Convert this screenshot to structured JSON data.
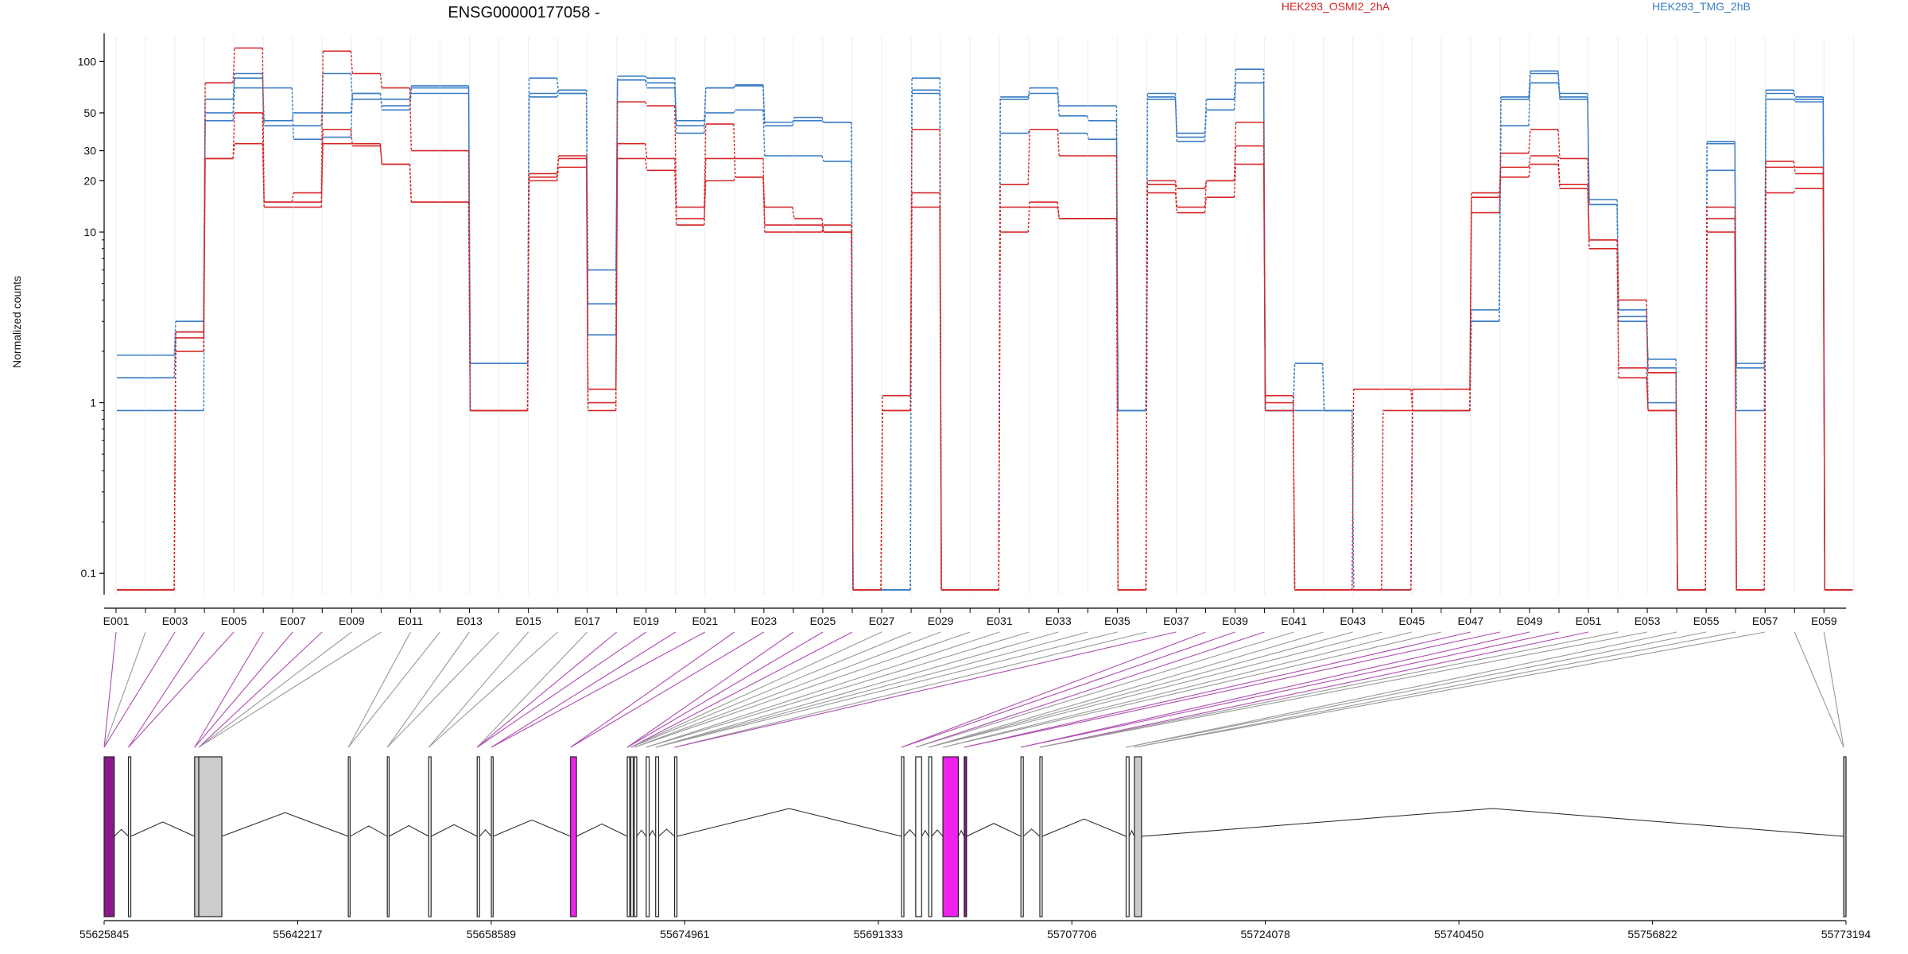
{
  "title": "ENSG00000177058 -",
  "legend": [
    {
      "name": "HEK293_OSMI2_2hA",
      "color": "#d62728"
    },
    {
      "name": "HEK293_TMG_2hB",
      "color": "#3a7dc4"
    }
  ],
  "ylabel": "Normalized counts",
  "colors": {
    "red": "#d62728",
    "blue": "#3a7dc4",
    "magenta": "#ee22ee",
    "purple_dark": "#8a1a8a",
    "gray_box": "#cccccc",
    "link_gray": "#999999",
    "link_purple": "#b04bb0"
  },
  "chart_data": {
    "type": "line",
    "scale": "log",
    "yticks": [
      0.1,
      1,
      10,
      20,
      30,
      50,
      100
    ],
    "yticklabels": [
      "0.1",
      "1",
      "10",
      "20",
      "30",
      "50",
      "100"
    ],
    "exon_ids": [
      "E001",
      "E002",
      "E003",
      "E004",
      "E005",
      "E006",
      "E007",
      "E008",
      "E009",
      "E010",
      "E011",
      "E012",
      "E013",
      "E014",
      "E015",
      "E016",
      "E017",
      "E018",
      "E019",
      "E020",
      "E021",
      "E022",
      "E023",
      "E024",
      "E025",
      "E026",
      "E027",
      "E028",
      "E029",
      "E030",
      "E031",
      "E032",
      "E033",
      "E034",
      "E035",
      "E036",
      "E037",
      "E038",
      "E039",
      "E040",
      "E041",
      "E042",
      "E043",
      "E044",
      "E045",
      "E046",
      "E047",
      "E048",
      "E049",
      "E050",
      "E051",
      "E052",
      "E053",
      "E054",
      "E055",
      "E056",
      "E057",
      "E058",
      "E059"
    ],
    "x_labels": [
      "E001",
      "E003",
      "E005",
      "E007",
      "E009",
      "E011",
      "E013",
      "E015",
      "E017",
      "E019",
      "E021",
      "E023",
      "E025",
      "E027",
      "E029",
      "E031",
      "E033",
      "E035",
      "E037",
      "E039",
      "E041",
      "E043",
      "E045",
      "E047",
      "E049",
      "E051",
      "E053",
      "E055",
      "E057",
      "E059"
    ],
    "series": [
      {
        "name": "HEK293_TMG_2hB",
        "color": "blue",
        "values": [
          1.9,
          1.9,
          3.0,
          45,
          70,
          70,
          35,
          36,
          65,
          55,
          65,
          65,
          0.9,
          0.9,
          65,
          68,
          3.8,
          78,
          75,
          42,
          50,
          52,
          28,
          28,
          26,
          0.08,
          0.08,
          68,
          0.08,
          0.08,
          38,
          40,
          38,
          35,
          0.9,
          60,
          34,
          52,
          75,
          0.9,
          1.7,
          0.9,
          0.08,
          0.08,
          0.9,
          0.9,
          3.0,
          42,
          85,
          60,
          14.5,
          3.0,
          1.8,
          0.08,
          23,
          1.7,
          60,
          58,
          0.08
        ]
      },
      {
        "name": "HEK293_TMG_2hB",
        "color": "blue",
        "values": [
          1.4,
          1.4,
          2.6,
          50,
          80,
          45,
          50,
          50,
          65,
          52,
          70,
          70,
          1.7,
          1.7,
          62,
          65,
          6.0,
          78,
          70,
          38,
          70,
          72,
          42,
          45,
          44,
          0.08,
          0.08,
          65,
          0.08,
          0.08,
          60,
          65,
          48,
          45,
          0.9,
          62,
          38,
          60,
          90,
          0.9,
          0.9,
          0.9,
          0.08,
          0.08,
          0.9,
          0.9,
          3.5,
          60,
          75,
          65,
          15.5,
          3.5,
          1.0,
          0.08,
          34,
          1.6,
          65,
          62,
          0.08
        ]
      },
      {
        "name": "HEK293_TMG_2hB",
        "color": "blue",
        "values": [
          0.9,
          0.9,
          0.9,
          60,
          85,
          42,
          42,
          85,
          60,
          60,
          72,
          72,
          1.7,
          1.7,
          80,
          65,
          2.5,
          82,
          80,
          45,
          70,
          73,
          44,
          47,
          44,
          0.08,
          0.08,
          80,
          0.08,
          0.08,
          62,
          70,
          55,
          55,
          0.9,
          65,
          36,
          60,
          90,
          0.9,
          1.7,
          0.9,
          0.08,
          0.08,
          0.9,
          0.9,
          3.0,
          62,
          88,
          62,
          14.5,
          3.2,
          1.6,
          0.08,
          33,
          0.9,
          68,
          60,
          0.08
        ]
      },
      {
        "name": "HEK293_OSMI2_2hA",
        "color": "red",
        "values": [
          0.08,
          0.08,
          2.6,
          75,
          120,
          15,
          17,
          115,
          85,
          70,
          30,
          30,
          0.9,
          0.9,
          21,
          28,
          0.9,
          58,
          55,
          14,
          43,
          21,
          14,
          12,
          10,
          0.08,
          0.9,
          14,
          0.08,
          0.08,
          19,
          40,
          28,
          28,
          0.08,
          20,
          18,
          20,
          32,
          1.1,
          0.08,
          0.08,
          0.08,
          0.08,
          1.2,
          1.2,
          16,
          29,
          40,
          27,
          9.0,
          4.0,
          1.5,
          0.08,
          14,
          0.08,
          26,
          22,
          0.08
        ]
      },
      {
        "name": "HEK293_OSMI2_2hA",
        "color": "red",
        "values": [
          0.08,
          0.08,
          2.4,
          27,
          50,
          14,
          14,
          40,
          32,
          25,
          15,
          15,
          0.9,
          0.9,
          22,
          27,
          1.2,
          33,
          27,
          11,
          27,
          27,
          10,
          10,
          11,
          0.08,
          1.1,
          40,
          0.08,
          0.08,
          14,
          14,
          12,
          12,
          0.08,
          19,
          14,
          20,
          44,
          1.0,
          0.08,
          0.08,
          1.2,
          1.2,
          0.9,
          0.9,
          13,
          24,
          28,
          19,
          9.0,
          1.6,
          0.9,
          0.08,
          10,
          0.08,
          24,
          24,
          0.08
        ]
      },
      {
        "name": "HEK293_OSMI2_2hA",
        "color": "red",
        "values": [
          0.08,
          0.08,
          2.0,
          27,
          33,
          15,
          15,
          33,
          33,
          25,
          15,
          15,
          0.9,
          0.9,
          20,
          24,
          1.0,
          27,
          23,
          12,
          20,
          21,
          11,
          11,
          10,
          0.08,
          0.9,
          17,
          0.08,
          0.08,
          10,
          15,
          12,
          12,
          0.08,
          17,
          13,
          16,
          25,
          0.9,
          0.08,
          0.08,
          0.08,
          0.9,
          0.9,
          0.9,
          17,
          21,
          25,
          18,
          8.0,
          1.4,
          0.9,
          0.08,
          12,
          0.08,
          17,
          18,
          0.08
        ]
      }
    ]
  },
  "gene_model": {
    "ticks": [
      "55625845",
      "55642217",
      "55658589",
      "55674961",
      "55691333",
      "55707706",
      "55724078",
      "55740450",
      "55756822",
      "55773194"
    ],
    "exons": [
      {
        "start": 55625845,
        "end": 55626700,
        "fill": "magenta_dark"
      },
      {
        "start": 55627900,
        "end": 55628100,
        "fill": "white"
      },
      {
        "start": 55633500,
        "end": 55633850,
        "fill": "gray"
      },
      {
        "start": 55633850,
        "end": 55635800,
        "fill": "gray"
      },
      {
        "start": 55646500,
        "end": 55646650,
        "fill": "white"
      },
      {
        "start": 55649800,
        "end": 55649950,
        "fill": "white"
      },
      {
        "start": 55653300,
        "end": 55653500,
        "fill": "white"
      },
      {
        "start": 55657400,
        "end": 55657600,
        "fill": "white"
      },
      {
        "start": 55658600,
        "end": 55658750,
        "fill": "white"
      },
      {
        "start": 55665300,
        "end": 55665800,
        "fill": "magenta"
      },
      {
        "start": 55670100,
        "end": 55670300,
        "fill": "white"
      },
      {
        "start": 55670400,
        "end": 55670600,
        "fill": "white"
      },
      {
        "start": 55670700,
        "end": 55670900,
        "fill": "white"
      },
      {
        "start": 55671700,
        "end": 55671950,
        "fill": "white"
      },
      {
        "start": 55672500,
        "end": 55672750,
        "fill": "white"
      },
      {
        "start": 55674100,
        "end": 55674300,
        "fill": "white"
      },
      {
        "start": 55693300,
        "end": 55693500,
        "fill": "white"
      },
      {
        "start": 55694500,
        "end": 55695000,
        "fill": "white"
      },
      {
        "start": 55695600,
        "end": 55695850,
        "fill": "white"
      },
      {
        "start": 55696800,
        "end": 55698100,
        "fill": "magenta"
      },
      {
        "start": 55698600,
        "end": 55698800,
        "fill": "purple"
      },
      {
        "start": 55703400,
        "end": 55703600,
        "fill": "white"
      },
      {
        "start": 55705000,
        "end": 55705200,
        "fill": "white"
      },
      {
        "start": 55712300,
        "end": 55712550,
        "fill": "white"
      },
      {
        "start": 55713000,
        "end": 55713600,
        "fill": "gray"
      },
      {
        "start": 55773000,
        "end": 55773194,
        "fill": "gray"
      }
    ],
    "links": [
      "purple",
      "gray",
      "purple",
      "purple",
      "purple",
      "purple",
      "purple",
      "purple",
      "gray",
      "gray",
      "gray",
      "gray",
      "gray",
      "gray",
      "gray",
      "gray",
      "gray",
      "purple",
      "purple",
      "purple",
      "purple",
      "purple",
      "purple",
      "purple",
      "purple",
      "purple",
      "gray",
      "gray",
      "gray",
      "gray",
      "gray",
      "gray",
      "gray",
      "gray",
      "gray",
      "gray",
      "purple",
      "purple",
      "purple",
      "purple",
      "gray",
      "gray",
      "gray",
      "gray",
      "gray",
      "gray",
      "purple",
      "purple",
      "purple",
      "purple",
      "purple",
      "gray",
      "gray",
      "gray",
      "gray",
      "gray",
      "gray",
      "gray",
      "gray"
    ]
  }
}
